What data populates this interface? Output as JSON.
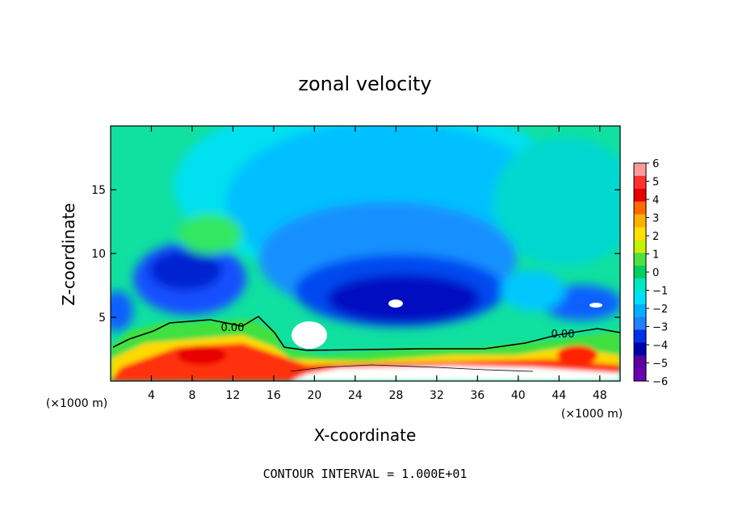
{
  "chart_data": {
    "type": "heatmap",
    "title": "zonal velocity",
    "xlabel": "X-coordinate",
    "ylabel": "Z-coordinate",
    "x_unit_left": "(×1000 m)",
    "x_unit_right": "(×1000 m)",
    "xlim": [
      0,
      50
    ],
    "ylim": [
      0,
      20
    ],
    "x_ticks": [
      4,
      8,
      12,
      16,
      20,
      24,
      28,
      32,
      36,
      40,
      44,
      48
    ],
    "y_ticks": [
      5,
      10,
      15
    ],
    "colorbar": {
      "levels": [
        6,
        5,
        4,
        3,
        2,
        1,
        0,
        -1,
        -2,
        -3,
        -4,
        -5,
        -6
      ],
      "labels": [
        "6",
        "5",
        "4",
        "3",
        "2",
        "1",
        "0",
        "−1",
        "−2",
        "−3",
        "−4",
        "−5",
        "−6"
      ],
      "colors": [
        "#ff9a9a",
        "#ff3030",
        "#e80000",
        "#ff6a00",
        "#ffb000",
        "#ffe000",
        "#c8f000",
        "#50e040",
        "#00d060",
        "#00e8c0",
        "#00e0ff",
        "#00b0ff",
        "#2080ff",
        "#0030e8",
        "#0000a8",
        "#5a00a0",
        "#6a00b0"
      ]
    },
    "contour_labels": [
      "0.00",
      "0.00"
    ],
    "footnote": "CONTOUR INTERVAL = 1.000E+01"
  }
}
